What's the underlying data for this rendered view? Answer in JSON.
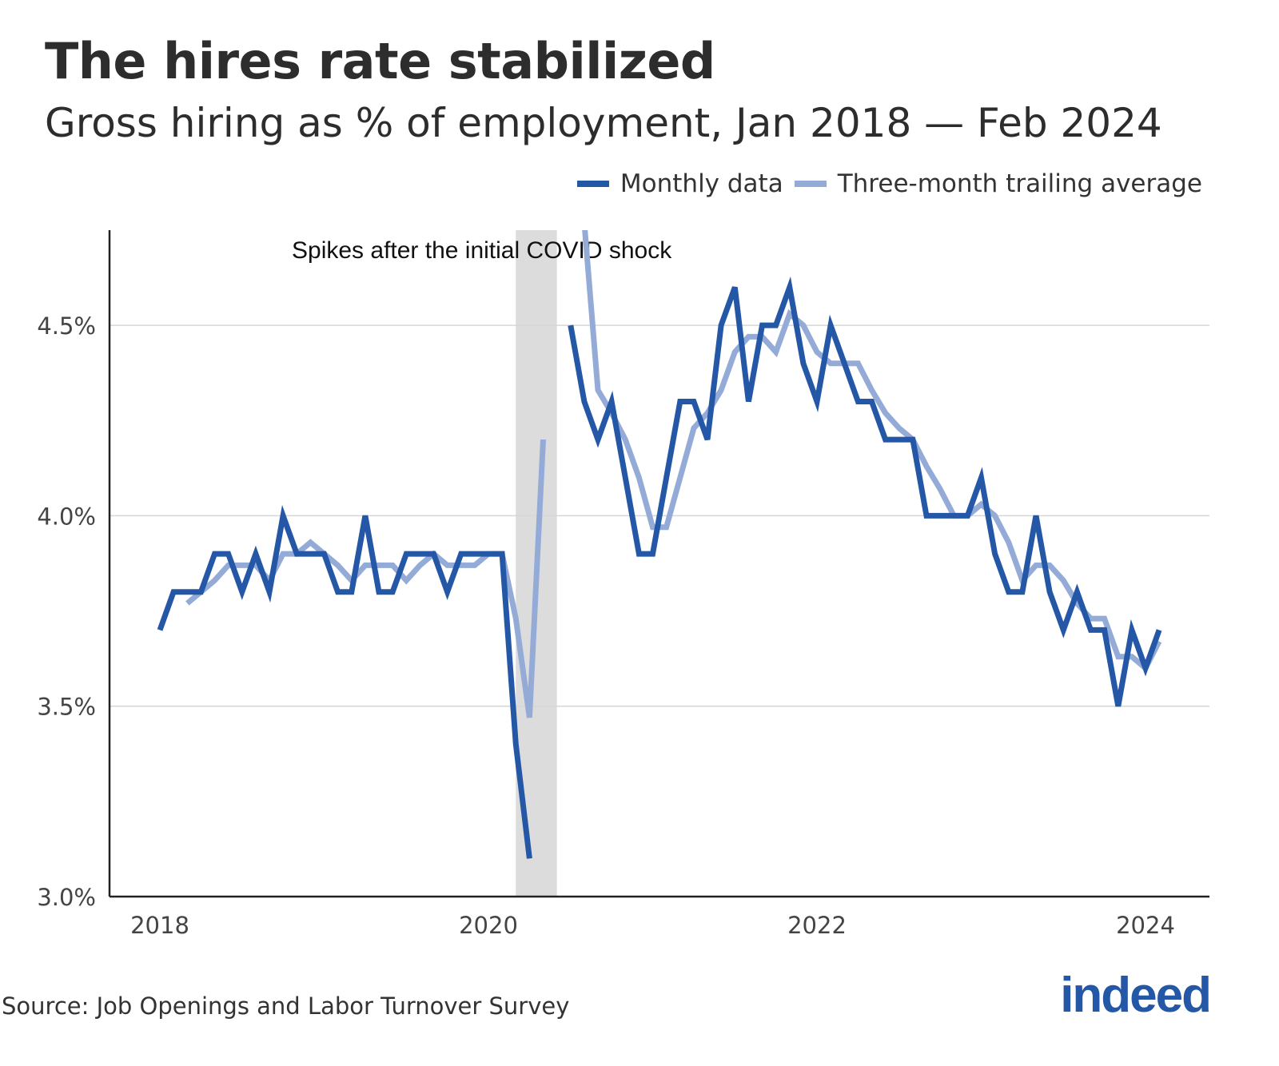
{
  "title": "The hires rate stabilized",
  "subtitle": "Gross hiring as % of employment, Jan 2018 — Feb 2024",
  "source": "Source: Job Openings and Labor Turnover Survey",
  "logo": "indeed",
  "colors": {
    "monthly": "#2557a7",
    "average": "#93abd6",
    "shade": "#dcdcdc",
    "grid": "#d6d6d6"
  },
  "chart_data": {
    "type": "line",
    "title": "The hires rate stabilized",
    "subtitle": "Gross hiring as % of employment, Jan 2018 — Feb 2024",
    "xlabel": "",
    "ylabel": "",
    "ylim": [
      3.0,
      4.75
    ],
    "yticks": [
      {
        "v": 3.0,
        "label": "3.0%"
      },
      {
        "v": 3.5,
        "label": "3.5%"
      },
      {
        "v": 4.0,
        "label": "4.0%"
      },
      {
        "v": 4.5,
        "label": "4.5%"
      }
    ],
    "xticks": [
      {
        "v": "2018-01",
        "label": "2018"
      },
      {
        "v": "2020-01",
        "label": "2020"
      },
      {
        "v": "2022-01",
        "label": "2022"
      },
      {
        "v": "2024-01",
        "label": "2024"
      }
    ],
    "grid": true,
    "legend_placement": "top-right",
    "shaded_range": [
      "2020-03",
      "2020-06"
    ],
    "annotation": "Spikes after the initial COVID shock",
    "x": [
      "2018-01",
      "2018-02",
      "2018-03",
      "2018-04",
      "2018-05",
      "2018-06",
      "2018-07",
      "2018-08",
      "2018-09",
      "2018-10",
      "2018-11",
      "2018-12",
      "2019-01",
      "2019-02",
      "2019-03",
      "2019-04",
      "2019-05",
      "2019-06",
      "2019-07",
      "2019-08",
      "2019-09",
      "2019-10",
      "2019-11",
      "2019-12",
      "2020-01",
      "2020-02",
      "2020-03",
      "2020-04",
      "2020-05",
      "2020-06",
      "2020-07",
      "2020-08",
      "2020-09",
      "2020-10",
      "2020-11",
      "2020-12",
      "2021-01",
      "2021-02",
      "2021-03",
      "2021-04",
      "2021-05",
      "2021-06",
      "2021-07",
      "2021-08",
      "2021-09",
      "2021-10",
      "2021-11",
      "2021-12",
      "2022-01",
      "2022-02",
      "2022-03",
      "2022-04",
      "2022-05",
      "2022-06",
      "2022-07",
      "2022-08",
      "2022-09",
      "2022-10",
      "2022-11",
      "2022-12",
      "2023-01",
      "2023-02",
      "2023-03",
      "2023-04",
      "2023-05",
      "2023-06",
      "2023-07",
      "2023-08",
      "2023-09",
      "2023-10",
      "2023-11",
      "2023-12",
      "2024-01",
      "2024-02"
    ],
    "series": [
      {
        "name": "Monthly data",
        "color": "#2557a7",
        "values": [
          3.7,
          3.8,
          3.8,
          3.8,
          3.9,
          3.9,
          3.8,
          3.9,
          3.8,
          4.0,
          3.9,
          3.9,
          3.9,
          3.8,
          3.8,
          4.0,
          3.8,
          3.8,
          3.9,
          3.9,
          3.9,
          3.8,
          3.9,
          3.9,
          3.9,
          3.9,
          3.4,
          3.1,
          null,
          null,
          4.5,
          4.3,
          4.2,
          4.3,
          4.1,
          3.9,
          3.9,
          4.1,
          4.3,
          4.3,
          4.2,
          4.5,
          4.6,
          4.3,
          4.5,
          4.5,
          4.6,
          4.4,
          4.3,
          4.5,
          4.4,
          4.3,
          4.3,
          4.2,
          4.2,
          4.2,
          4.0,
          4.0,
          4.0,
          4.0,
          4.1,
          3.9,
          3.8,
          3.8,
          4.0,
          3.8,
          3.7,
          3.8,
          3.7,
          3.7,
          3.5,
          3.7,
          3.6,
          3.7
        ]
      },
      {
        "name": "Three-month trailing average",
        "color": "#93abd6",
        "values": [
          null,
          null,
          3.77,
          3.8,
          3.83,
          3.87,
          3.87,
          3.87,
          3.83,
          3.9,
          3.9,
          3.93,
          3.9,
          3.87,
          3.83,
          3.87,
          3.87,
          3.87,
          3.83,
          3.87,
          3.9,
          3.87,
          3.87,
          3.87,
          3.9,
          3.9,
          3.73,
          3.47,
          4.2,
          null,
          null,
          4.77,
          4.33,
          4.27,
          4.2,
          4.1,
          3.97,
          3.97,
          4.1,
          4.23,
          4.27,
          4.33,
          4.43,
          4.47,
          4.47,
          4.43,
          4.53,
          4.5,
          4.43,
          4.4,
          4.4,
          4.4,
          4.33,
          4.27,
          4.23,
          4.2,
          4.13,
          4.07,
          4.0,
          4.0,
          4.03,
          4.0,
          3.93,
          3.83,
          3.87,
          3.87,
          3.83,
          3.77,
          3.73,
          3.73,
          3.63,
          3.63,
          3.6,
          3.67
        ]
      }
    ]
  }
}
